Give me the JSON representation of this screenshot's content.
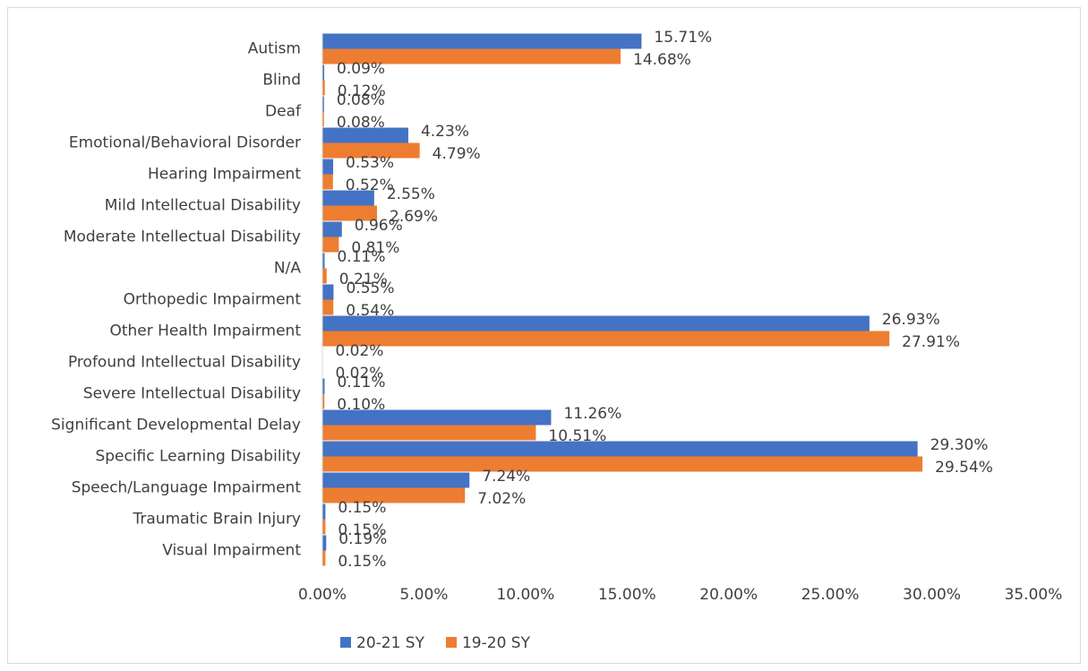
{
  "chart_data": {
    "type": "hbar",
    "categories": [
      "Autism",
      "Blind",
      "Deaf",
      "Emotional/Behavioral Disorder",
      "Hearing Impairment",
      "Mild Intellectual Disability",
      "Moderate Intellectual Disability",
      "N/A",
      "Orthopedic Impairment",
      "Other Health Impairment",
      "Profound Intellectual Disability",
      "Severe Intellectual Disability",
      "Significant Developmental Delay",
      "Specific Learning Disability",
      "Speech/Language Impairment",
      "Traumatic Brain Injury",
      "Visual Impairment"
    ],
    "series": [
      {
        "name": "20-21 SY",
        "color": "#4472c4",
        "values": [
          15.71,
          0.09,
          0.08,
          4.23,
          0.53,
          2.55,
          0.96,
          0.11,
          0.55,
          26.93,
          0.02,
          0.11,
          11.26,
          29.3,
          7.24,
          0.15,
          0.19
        ],
        "value_labels": [
          "15.71%",
          "0.09%",
          "0.08%",
          "4.23%",
          "0.53%",
          "2.55%",
          "0.96%",
          "0.11%",
          "0.55%",
          "26.93%",
          "0.02%",
          "0.11%",
          "11.26%",
          "29.30%",
          "7.24%",
          "0.15%",
          "0.19%"
        ]
      },
      {
        "name": "19-20 SY",
        "color": "#ed7d31",
        "values": [
          14.68,
          0.12,
          0.08,
          4.79,
          0.52,
          2.69,
          0.81,
          0.21,
          0.54,
          27.91,
          0.02,
          0.1,
          10.51,
          29.54,
          7.02,
          0.15,
          0.15
        ],
        "value_labels": [
          "14.68%",
          "0.12%",
          "0.08%",
          "4.79%",
          "0.52%",
          "2.69%",
          "0.81%",
          "0.21%",
          "0.54%",
          "27.91%",
          "0.02%",
          "0.10%",
          "10.51%",
          "29.54%",
          "7.02%",
          "0.15%",
          "0.15%"
        ]
      }
    ],
    "xlim": [
      0,
      35
    ],
    "xticks": [
      {
        "value": 0,
        "label": "0.00%"
      },
      {
        "value": 5,
        "label": "5.00%"
      },
      {
        "value": 10,
        "label": "10.00%"
      },
      {
        "value": 15,
        "label": "15.00%"
      },
      {
        "value": 20,
        "label": "20.00%"
      },
      {
        "value": 25,
        "label": "25.00%"
      },
      {
        "value": 30,
        "label": "30.00%"
      },
      {
        "value": 35,
        "label": "35.00%"
      }
    ],
    "grid": false,
    "legend": "bottom"
  }
}
